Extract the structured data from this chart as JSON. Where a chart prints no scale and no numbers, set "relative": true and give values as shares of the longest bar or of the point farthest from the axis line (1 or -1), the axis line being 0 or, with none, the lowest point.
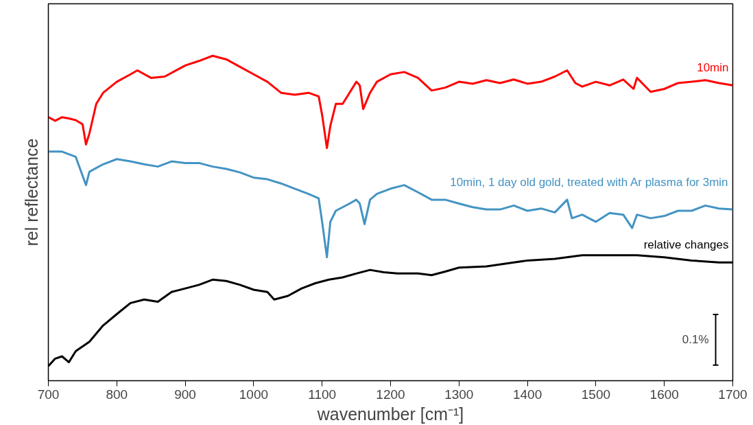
{
  "chart_data": {
    "type": "line",
    "relative": true,
    "xlabel": "wavenumber [cm⁻¹]",
    "ylabel": "rel reflectance",
    "xlim": [
      700,
      1700
    ],
    "xticks": [
      700,
      800,
      900,
      1000,
      1100,
      1200,
      1300,
      1400,
      1500,
      1600,
      1700
    ],
    "tick_labels": "x",
    "grid": false,
    "marker": "none",
    "line_style": "solid",
    "annotations": [
      {
        "text": "0.1%",
        "x": 1675,
        "y": 0.126
      }
    ],
    "series": [
      {
        "name": "10min",
        "color": "#ff0000",
        "x": [
          700,
          710,
          720,
          730,
          740,
          750,
          755,
          760,
          770,
          780,
          800,
          820,
          830,
          850,
          870,
          900,
          920,
          940,
          960,
          980,
          1000,
          1020,
          1040,
          1060,
          1080,
          1095,
          1100,
          1107,
          1112,
          1120,
          1130,
          1140,
          1150,
          1155,
          1160,
          1170,
          1180,
          1200,
          1220,
          1240,
          1260,
          1280,
          1300,
          1320,
          1340,
          1360,
          1380,
          1400,
          1420,
          1440,
          1458,
          1470,
          1480,
          1500,
          1520,
          1540,
          1555,
          1560,
          1580,
          1600,
          1620,
          1640,
          1660,
          1680,
          1700
        ],
        "values": [
          0.811,
          0.8,
          0.811,
          0.807,
          0.802,
          0.789,
          0.727,
          0.761,
          0.852,
          0.886,
          0.92,
          0.943,
          0.955,
          0.932,
          0.936,
          0.97,
          0.984,
          1.0,
          0.989,
          0.966,
          0.943,
          0.92,
          0.886,
          0.88,
          0.886,
          0.875,
          0.818,
          0.716,
          0.784,
          0.852,
          0.852,
          0.886,
          0.92,
          0.909,
          0.836,
          0.886,
          0.92,
          0.943,
          0.95,
          0.932,
          0.893,
          0.902,
          0.92,
          0.914,
          0.925,
          0.916,
          0.927,
          0.914,
          0.92,
          0.936,
          0.955,
          0.916,
          0.905,
          0.92,
          0.909,
          0.927,
          0.898,
          0.932,
          0.889,
          0.898,
          0.916,
          0.92,
          0.925,
          0.916,
          0.909
        ]
      },
      {
        "name": "10min, 1 day old gold, treated with Ar plasma for 3min",
        "color": "#4393c3",
        "x": [
          700,
          720,
          740,
          755,
          760,
          780,
          800,
          820,
          840,
          860,
          880,
          900,
          920,
          940,
          960,
          980,
          1000,
          1020,
          1040,
          1060,
          1080,
          1095,
          1100,
          1107,
          1112,
          1120,
          1140,
          1150,
          1155,
          1162,
          1170,
          1180,
          1200,
          1220,
          1240,
          1260,
          1280,
          1300,
          1320,
          1340,
          1360,
          1380,
          1400,
          1420,
          1440,
          1458,
          1465,
          1480,
          1500,
          1520,
          1540,
          1553,
          1560,
          1580,
          1600,
          1620,
          1640,
          1660,
          1680,
          1700
        ],
        "values": [
          0.705,
          0.705,
          0.689,
          0.602,
          0.643,
          0.666,
          0.682,
          0.675,
          0.666,
          0.659,
          0.675,
          0.67,
          0.67,
          0.659,
          0.652,
          0.641,
          0.625,
          0.62,
          0.607,
          0.591,
          0.575,
          0.561,
          0.489,
          0.38,
          0.489,
          0.523,
          0.545,
          0.557,
          0.545,
          0.482,
          0.557,
          0.575,
          0.591,
          0.602,
          0.58,
          0.557,
          0.557,
          0.545,
          0.534,
          0.527,
          0.527,
          0.539,
          0.523,
          0.53,
          0.518,
          0.557,
          0.5,
          0.511,
          0.489,
          0.516,
          0.511,
          0.47,
          0.511,
          0.5,
          0.507,
          0.523,
          0.523,
          0.539,
          0.53,
          0.527
        ]
      },
      {
        "type": "line",
        "color": "#000000",
        "x": [
          1671,
          1679,
          1675,
          1675,
          1671,
          1679
        ],
        "values": [
          0.048,
          0.048,
          0.048,
          0.204,
          0.204,
          0.204
        ]
      },
      {
        "name": "relative changes",
        "color": "#000000",
        "x": [
          700,
          710,
          720,
          730,
          740,
          760,
          780,
          800,
          820,
          840,
          860,
          880,
          900,
          920,
          940,
          960,
          980,
          1000,
          1020,
          1030,
          1050,
          1070,
          1090,
          1110,
          1130,
          1150,
          1170,
          1190,
          1210,
          1240,
          1260,
          1280,
          1300,
          1340,
          1380,
          1400,
          1440,
          1480,
          1520,
          1560,
          1600,
          1640,
          1680,
          1700
        ],
        "values": [
          0.045,
          0.068,
          0.075,
          0.057,
          0.091,
          0.12,
          0.17,
          0.205,
          0.239,
          0.25,
          0.243,
          0.273,
          0.284,
          0.295,
          0.311,
          0.307,
          0.295,
          0.28,
          0.273,
          0.25,
          0.261,
          0.284,
          0.3,
          0.311,
          0.318,
          0.33,
          0.341,
          0.334,
          0.33,
          0.33,
          0.325,
          0.336,
          0.348,
          0.352,
          0.364,
          0.37,
          0.375,
          0.386,
          0.386,
          0.386,
          0.38,
          0.37,
          0.364,
          0.364
        ]
      }
    ]
  }
}
